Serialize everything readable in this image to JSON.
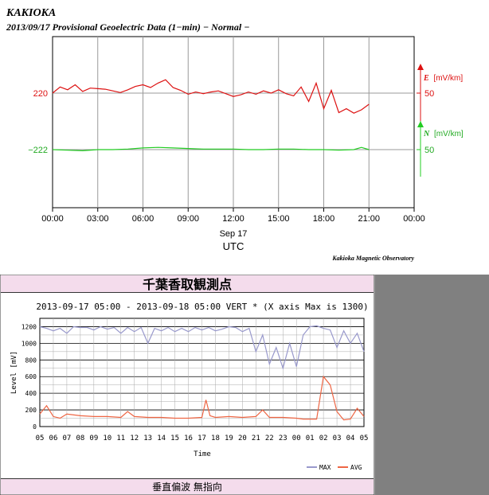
{
  "top_chart": {
    "title": "KAKIOKA",
    "subtitle": "2013/09/17  Provisional Geoelectric Data (1−min)  − Normal −",
    "credit": "Kakioka Magnetic Observatory",
    "xlabel": "UTC",
    "date_label": "Sep 17",
    "x_ticks": [
      "00:00",
      "03:00",
      "06:00",
      "09:00",
      "12:00",
      "15:00",
      "18:00",
      "21:00",
      "00:00"
    ],
    "left_labels": [
      "220",
      "−222"
    ],
    "right_labels": [
      "50",
      "50"
    ],
    "series_labels": [
      {
        "prefix": "E",
        "unit": "[mV/km]",
        "color": "#dd1111"
      },
      {
        "prefix": "N",
        "unit": "[mV/km]",
        "color": "#22cc22"
      }
    ]
  },
  "chart_data": [
    {
      "type": "line",
      "title": "KAKIOKA",
      "subtitle": "2013/09/17  Provisional Geoelectric Data (1−min)  − Normal −",
      "xlabel": "UTC",
      "x_unit": "hours",
      "xlim": [
        0,
        24
      ],
      "series": [
        {
          "name": "E",
          "unit": "mV/km",
          "color": "#dd1111",
          "x": [
            0,
            0.5,
            1,
            1.5,
            2,
            2.5,
            3,
            3.5,
            4,
            4.5,
            5,
            5.5,
            6,
            6.5,
            7,
            7.5,
            8,
            8.5,
            9,
            9.5,
            10,
            10.5,
            11,
            11.5,
            12,
            12.5,
            13,
            13.5,
            14,
            14.5,
            15,
            15.5,
            16,
            16.5,
            17,
            17.5,
            18,
            18.5,
            19,
            19.5,
            20,
            20.5,
            21
          ],
          "y": [
            220,
            231,
            226,
            235,
            223,
            229,
            228,
            227,
            224,
            221,
            226,
            232,
            235,
            230,
            238,
            244,
            230,
            225,
            218,
            222,
            219,
            222,
            224,
            219,
            214,
            217,
            222,
            218,
            224,
            220,
            226,
            219,
            215,
            231,
            205,
            238,
            192,
            225,
            185,
            192,
            184,
            190,
            200
          ]
        },
        {
          "name": "N",
          "unit": "mV/km",
          "color": "#22cc22",
          "x": [
            0,
            1,
            2,
            3,
            4,
            5,
            6,
            7,
            8,
            9,
            10,
            11,
            12,
            13,
            14,
            15,
            16,
            17,
            18,
            19,
            20,
            20.5,
            21
          ],
          "y": [
            -222,
            -223,
            -224,
            -222,
            -222,
            -221,
            -219,
            -218,
            -219,
            -220,
            -221,
            -221,
            -221,
            -222,
            -222,
            -221,
            -221,
            -222,
            -222,
            -223,
            -222,
            -218,
            -222
          ]
        }
      ]
    },
    {
      "type": "line",
      "title": "2013-09-17 05:00 - 2013-09-18 05:00 VERT * (X axis Max is 1300)",
      "xlabel": "Time",
      "ylabel": "Level [mV]",
      "ylim": [
        0,
        1300
      ],
      "x_unit": "hours since 05:00",
      "series": [
        {
          "name": "MAX",
          "color": "#9999cc",
          "x": [
            0,
            0.5,
            1,
            1.5,
            2,
            2.5,
            3,
            3.5,
            4,
            4.5,
            5,
            5.5,
            6,
            6.5,
            7,
            7.5,
            8,
            8.5,
            9,
            9.5,
            10,
            10.5,
            11,
            11.5,
            12,
            12.5,
            13,
            13.5,
            14,
            14.5,
            15,
            15.5,
            16,
            16.5,
            17,
            17.5,
            18,
            18.5,
            19,
            19.5,
            20,
            20.5,
            21,
            21.5,
            22,
            22.5,
            23,
            23.5,
            24
          ],
          "y": [
            1200,
            1180,
            1150,
            1180,
            1120,
            1200,
            1190,
            1190,
            1160,
            1200,
            1170,
            1190,
            1120,
            1190,
            1140,
            1190,
            1000,
            1180,
            1150,
            1190,
            1140,
            1180,
            1140,
            1190,
            1160,
            1190,
            1150,
            1170,
            1200,
            1190,
            1140,
            1180,
            900,
            1100,
            750,
            950,
            700,
            1000,
            720,
            1100,
            1200,
            1210,
            1180,
            1160,
            950,
            1150,
            1000,
            1120,
            900
          ]
        },
        {
          "name": "AVG",
          "color": "#ee6644",
          "x": [
            0,
            0.5,
            1,
            1.5,
            2,
            3,
            4,
            5,
            6,
            6.5,
            7,
            8,
            9,
            10,
            11,
            12,
            12.3,
            12.6,
            13,
            14,
            15,
            16,
            16.5,
            17,
            18,
            19,
            19.5,
            20,
            20.5,
            21,
            21.5,
            22,
            22.5,
            23,
            23.5,
            24
          ],
          "y": [
            150,
            250,
            120,
            100,
            150,
            130,
            120,
            120,
            110,
            180,
            120,
            110,
            110,
            100,
            100,
            110,
            320,
            130,
            110,
            120,
            110,
            120,
            200,
            110,
            110,
            100,
            90,
            90,
            90,
            600,
            500,
            180,
            80,
            90,
            220,
            120
          ]
        }
      ]
    }
  ],
  "bottom_chart": {
    "header": "千葉香取観測点",
    "title": "2013-09-17 05:00 - 2013-09-18 05:00 VERT * (X axis Max is 1300)",
    "ylabel": "Level [mV]",
    "xlabel": "Time",
    "y_ticks": [
      "1200",
      "1000",
      "800",
      "600",
      "400",
      "200",
      "0"
    ],
    "x_ticks": [
      "05",
      "06",
      "07",
      "08",
      "09",
      "10",
      "11",
      "12",
      "13",
      "14",
      "15",
      "16",
      "17",
      "18",
      "19",
      "20",
      "21",
      "22",
      "23",
      "00",
      "01",
      "02",
      "03",
      "04",
      "05"
    ],
    "legend": [
      {
        "label": "MAX",
        "color": "#9999cc"
      },
      {
        "label": "AVG",
        "color": "#ee6644"
      }
    ],
    "footer": "垂直偏波 無指向"
  }
}
